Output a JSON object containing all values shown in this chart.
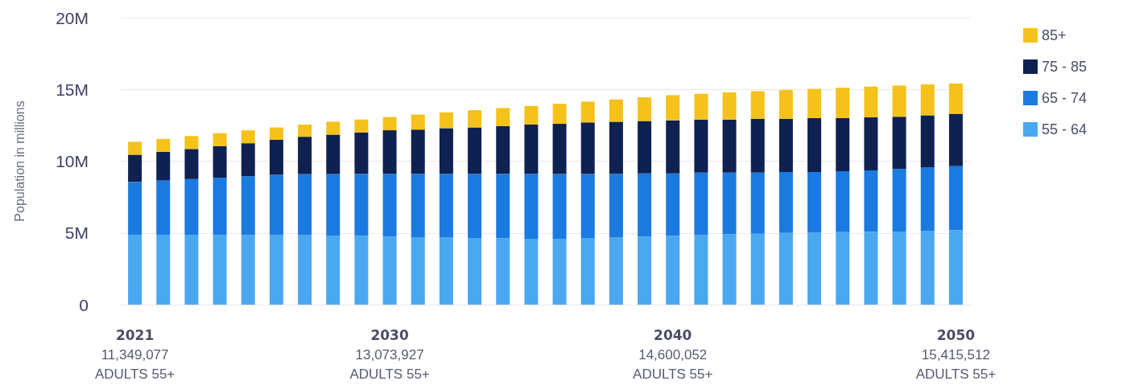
{
  "chart_data": {
    "type": "bar",
    "stacked": true,
    "ylabel": "Population in millions",
    "categories": [
      "2021",
      null,
      null,
      null,
      null,
      null,
      null,
      null,
      null,
      "2030",
      null,
      null,
      null,
      null,
      null,
      null,
      null,
      null,
      null,
      "2040",
      null,
      null,
      null,
      null,
      null,
      null,
      null,
      null,
      null,
      "2050"
    ],
    "series": [
      {
        "name": "55 - 64",
        "color": "#4aa8f0",
        "values": [
          4880000,
          4880000,
          4870000,
          4860000,
          4860000,
          4850000,
          4840000,
          4820000,
          4800000,
          4750000,
          4700000,
          4680000,
          4650000,
          4630000,
          4600000,
          4600000,
          4650000,
          4700000,
          4750000,
          4800000,
          4850000,
          4900000,
          4950000,
          5000000,
          5020000,
          5050000,
          5080000,
          5100000,
          5150000,
          5200000
        ]
      },
      {
        "name": "65 - 74",
        "color": "#1a7ae0",
        "values": [
          3670000,
          3770000,
          3880000,
          3990000,
          4090000,
          4200000,
          4260000,
          4280000,
          4320000,
          4370000,
          4420000,
          4440000,
          4470000,
          4490000,
          4520000,
          4500000,
          4450000,
          4420000,
          4400000,
          4350000,
          4350000,
          4300000,
          4250000,
          4250000,
          4230000,
          4250000,
          4270000,
          4350000,
          4400000,
          4450000
        ]
      },
      {
        "name": "75 - 85",
        "color": "#0f2150",
        "values": [
          1900000,
          2000000,
          2100000,
          2200000,
          2300000,
          2450000,
          2600000,
          2750000,
          2880000,
          3030000,
          3080000,
          3180000,
          3230000,
          3330000,
          3430000,
          3500000,
          3600000,
          3630000,
          3650000,
          3700000,
          3700000,
          3700000,
          3750000,
          3700000,
          3750000,
          3700000,
          3700000,
          3650000,
          3650000,
          3650000
        ]
      },
      {
        "name": "85+",
        "color": "#f5c21b",
        "values": [
          899077,
          900000,
          900000,
          900000,
          900000,
          850000,
          850000,
          900000,
          900000,
          923927,
          1050000,
          1100000,
          1200000,
          1250000,
          1300000,
          1400000,
          1450000,
          1550000,
          1650000,
          1750052,
          1800000,
          1900000,
          1930000,
          2010000,
          2040000,
          2120000,
          2150000,
          2170000,
          2150000,
          2115512
        ]
      }
    ],
    "totals": [
      "11,349,077",
      null,
      null,
      null,
      null,
      null,
      null,
      null,
      null,
      "13,073,927",
      null,
      null,
      null,
      null,
      null,
      null,
      null,
      null,
      null,
      "14,600,052",
      null,
      null,
      null,
      null,
      null,
      null,
      null,
      null,
      null,
      "15,415,512"
    ],
    "annotations": [
      "ADULTS 55+",
      "ADULTS 55+",
      "ADULTS 55+",
      "ADULTS 55+"
    ],
    "ylim": [
      0,
      20000000
    ],
    "yticks": [
      0,
      {
        "value": 5000000,
        "label": "5M"
      },
      {
        "value": 10000000,
        "label": "10M"
      },
      {
        "value": 15000000,
        "label": "15M"
      },
      {
        "value": 20000000,
        "label": "20M"
      }
    ],
    "grid": "y",
    "legend": "top right"
  }
}
